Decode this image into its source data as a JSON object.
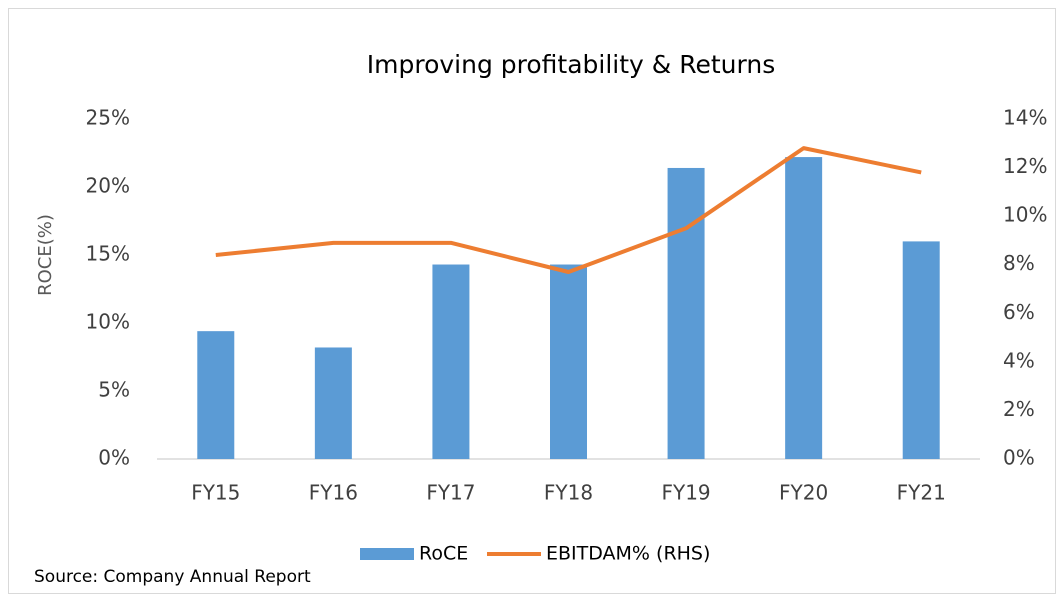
{
  "chart_data": {
    "type": "bar",
    "title": "Improving profitability & Returns",
    "y_label": "ROCE(%)",
    "source": "Source: Company Annual Report",
    "categories": [
      "FY15",
      "FY16",
      "FY17",
      "FY18",
      "FY19",
      "FY20",
      "FY21"
    ],
    "series": [
      {
        "name": "RoCE",
        "type": "bar",
        "color": "#5b9bd5",
        "values": [
          9.4,
          8.2,
          14.3,
          14.3,
          21.4,
          22.2,
          16.0
        ]
      },
      {
        "name": "EBITDAM% (RHS)",
        "type": "line",
        "axis": "y2",
        "color": "#ed7d31",
        "values": [
          8.4,
          8.9,
          8.9,
          7.7,
          9.5,
          12.8,
          11.8
        ]
      }
    ],
    "ylim": [
      0,
      25
    ],
    "yticks": [
      {
        "value": 0,
        "label": "0%"
      },
      {
        "value": 5,
        "label": "5%"
      },
      {
        "value": 10,
        "label": "10%"
      },
      {
        "value": 15,
        "label": "15%"
      },
      {
        "value": 20,
        "label": "20%"
      },
      {
        "value": 25,
        "label": "25%"
      }
    ],
    "y2lim": [
      0,
      14
    ],
    "y2ticks": [
      {
        "value": 0,
        "label": "0%"
      },
      {
        "value": 2,
        "label": "2%"
      },
      {
        "value": 4,
        "label": "4%"
      },
      {
        "value": 6,
        "label": "6%"
      },
      {
        "value": 8,
        "label": "8%"
      },
      {
        "value": 10,
        "label": "10%"
      },
      {
        "value": 12,
        "label": "12%"
      },
      {
        "value": 14,
        "label": "14%"
      }
    ],
    "grid": false,
    "legend": "bottom"
  }
}
